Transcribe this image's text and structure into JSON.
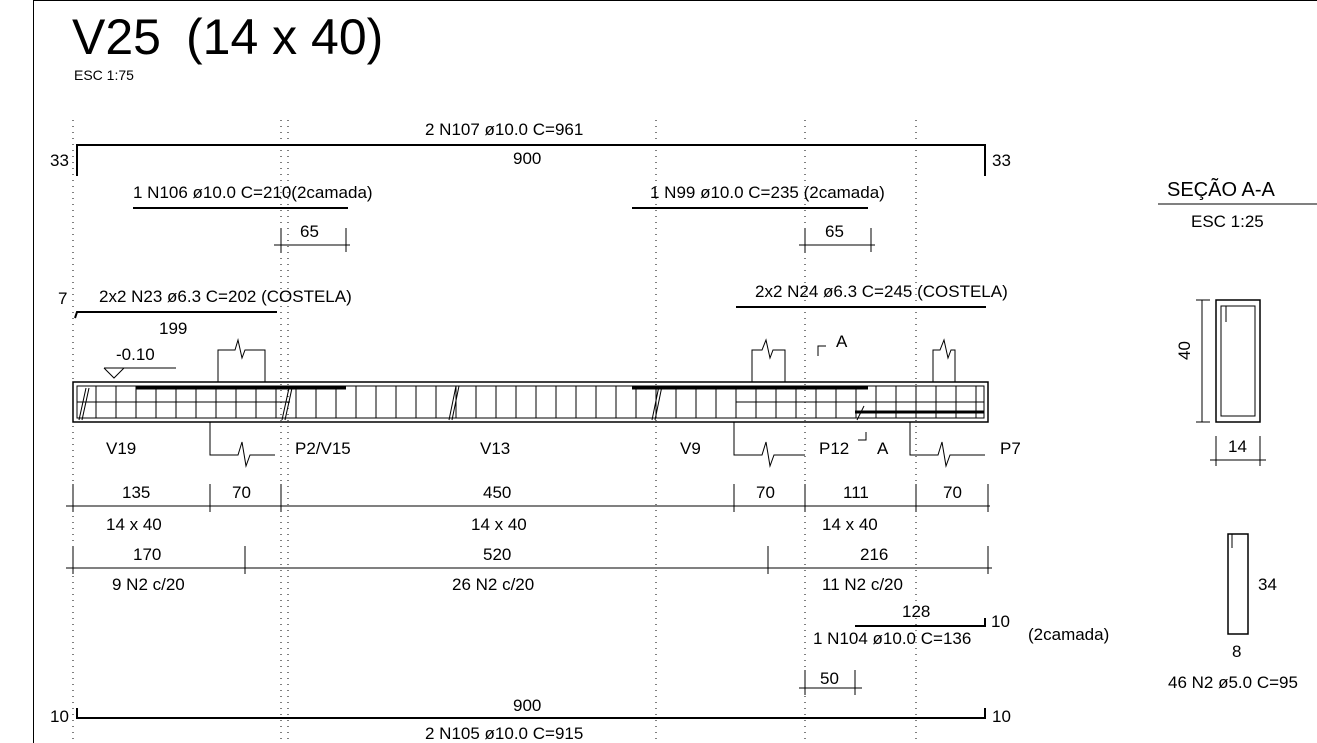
{
  "title": {
    "name": "V25",
    "dims": "(14 x 40)",
    "scale": "ESC 1:75"
  },
  "top_bar": {
    "label": "2 N107 ø10.0  C=961",
    "length": "900",
    "hook_left": "33",
    "hook_right": "33"
  },
  "bar_n106": {
    "label": "1 N106 ø10.0  C=210(2camada)",
    "dim": "65"
  },
  "bar_n99": {
    "label": "1 N99 ø10.0  C=235 (2camada)",
    "dim": "65"
  },
  "bar_n23": {
    "label": "2x2 N23 ø6.3  C=202 (COSTELA)",
    "hook": "7",
    "length": "199"
  },
  "bar_n24": {
    "label": "2x2 N24 ø6.3  C=245 (COSTELA)"
  },
  "level": "-0.10",
  "supports": [
    "V19",
    "P2/V15",
    "V13",
    "V9",
    "P12",
    "P7"
  ],
  "section_marks": {
    "top": "A",
    "bottom": "A"
  },
  "dim_row1": [
    "135",
    "70",
    "450",
    "70",
    "111",
    "70"
  ],
  "sizes_row": [
    "14 x 40",
    "14 x 40",
    "14 x 40"
  ],
  "dim_row2": [
    "170",
    "520",
    "216"
  ],
  "stirrups_row": [
    "9 N2 c/20",
    "26 N2 c/20",
    "11 N2 c/20"
  ],
  "bar_n104": {
    "length": "128",
    "hook": "10",
    "label": "1 N104 ø10.0  C=136",
    "note": "(2camada)",
    "dim": "50"
  },
  "bottom_bar": {
    "length": "900",
    "label": "2 N105 ø10.0  C=915",
    "hook_left": "10",
    "hook_right": "10"
  },
  "section": {
    "title": "SEÇÃO A-A",
    "scale": "ESC 1:25",
    "height": "40",
    "width": "14"
  },
  "stirrup": {
    "height": "34",
    "width": "8",
    "label": "46 N2 ø5.0  C=95"
  }
}
